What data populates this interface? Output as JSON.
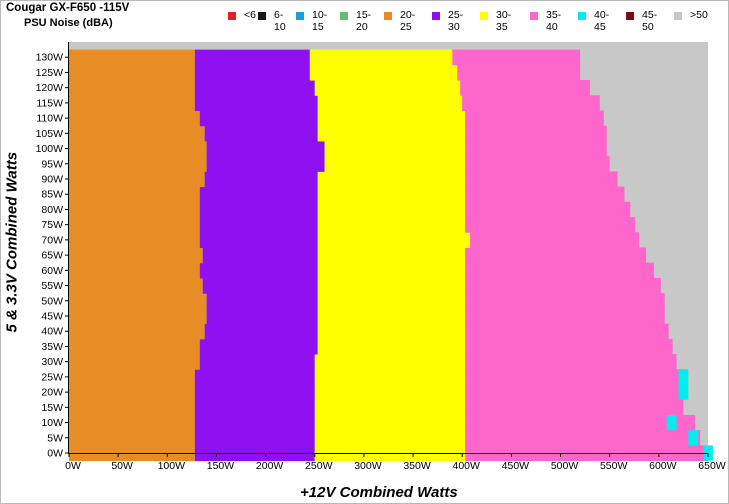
{
  "title": "Cougar GX-F650 -115V",
  "subtitle": "PSU Noise (dBA)",
  "chart_data": {
    "type": "heatmap",
    "xlabel": "+12V Combined Watts",
    "ylabel": "5 & 3.3V Combined Watts",
    "xlim": [
      0,
      650
    ],
    "ylim": [
      0,
      130
    ],
    "x_ticks": [
      "0W",
      "50W",
      "100W",
      "150W",
      "200W",
      "250W",
      "300W",
      "350W",
      "400W",
      "450W",
      "500W",
      "550W",
      "600W",
      "650W"
    ],
    "y_ticks": [
      "0W",
      "5W",
      "10W",
      "15W",
      "20W",
      "25W",
      "30W",
      "35W",
      "40W",
      "45W",
      "50W",
      "55W",
      "60W",
      "65W",
      "70W",
      "75W",
      "80W",
      "85W",
      "90W",
      "95W",
      "100W",
      "105W",
      "110W",
      "115W",
      "120W",
      "125W",
      "130W"
    ],
    "legend": [
      {
        "label": "<6",
        "color": "#e02020"
      },
      {
        "label": "6-10",
        "color": "#1a1a1a"
      },
      {
        "label": "10-15",
        "color": "#1aa0d8"
      },
      {
        "label": "15-20",
        "color": "#66bb6a"
      },
      {
        "label": "20-25",
        "color": "#e88c25"
      },
      {
        "label": "25-30",
        "color": "#8f10f0"
      },
      {
        "label": "30-35",
        "color": "#ffff00"
      },
      {
        "label": "35-40",
        "color": "#ff66cc"
      },
      {
        "label": "40-45",
        "color": "#00eeee"
      },
      {
        "label": "45-50",
        "color": "#7a0e0e"
      },
      {
        "label": ">50",
        "color": "#c8c8c8"
      }
    ],
    "zone_boundaries_watts": [
      {
        "y": 0,
        "b20": 128,
        "b25": 250,
        "b30": 403,
        "b35": 652
      },
      {
        "y": 5,
        "b20": 128,
        "b25": 250,
        "b30": 403,
        "b35": 642
      },
      {
        "y": 10,
        "b20": 128,
        "b25": 250,
        "b30": 403,
        "b35": 637
      },
      {
        "y": 15,
        "b20": 128,
        "b25": 250,
        "b30": 403,
        "b35": 625
      },
      {
        "y": 20,
        "b20": 128,
        "b25": 250,
        "b30": 403,
        "b35": 625
      },
      {
        "y": 25,
        "b20": 128,
        "b25": 250,
        "b30": 403,
        "b35": 625
      },
      {
        "y": 30,
        "b20": 133,
        "b25": 250,
        "b30": 403,
        "b35": 618
      },
      {
        "y": 35,
        "b20": 133,
        "b25": 253,
        "b30": 403,
        "b35": 614
      },
      {
        "y": 40,
        "b20": 138,
        "b25": 253,
        "b30": 403,
        "b35": 610
      },
      {
        "y": 45,
        "b20": 140,
        "b25": 253,
        "b30": 403,
        "b35": 606
      },
      {
        "y": 50,
        "b20": 140,
        "b25": 253,
        "b30": 403,
        "b35": 606
      },
      {
        "y": 55,
        "b20": 136,
        "b25": 253,
        "b30": 403,
        "b35": 602
      },
      {
        "y": 60,
        "b20": 133,
        "b25": 253,
        "b30": 403,
        "b35": 595
      },
      {
        "y": 65,
        "b20": 136,
        "b25": 253,
        "b30": 403,
        "b35": 587
      },
      {
        "y": 70,
        "b20": 133,
        "b25": 253,
        "b30": 408,
        "b35": 580
      },
      {
        "y": 75,
        "b20": 133,
        "b25": 253,
        "b30": 403,
        "b35": 576
      },
      {
        "y": 80,
        "b20": 133,
        "b25": 253,
        "b30": 403,
        "b35": 571
      },
      {
        "y": 85,
        "b20": 133,
        "b25": 253,
        "b30": 403,
        "b35": 565
      },
      {
        "y": 90,
        "b20": 138,
        "b25": 253,
        "b30": 403,
        "b35": 558
      },
      {
        "y": 95,
        "b20": 140,
        "b25": 260,
        "b30": 403,
        "b35": 550
      },
      {
        "y": 100,
        "b20": 140,
        "b25": 260,
        "b30": 403,
        "b35": 547
      },
      {
        "y": 105,
        "b20": 138,
        "b25": 253,
        "b30": 403,
        "b35": 547
      },
      {
        "y": 110,
        "b20": 133,
        "b25": 253,
        "b30": 403,
        "b35": 544
      },
      {
        "y": 115,
        "b20": 128,
        "b25": 253,
        "b30": 400,
        "b35": 540
      },
      {
        "y": 120,
        "b20": 128,
        "b25": 250,
        "b30": 398,
        "b35": 530
      },
      {
        "y": 125,
        "b20": 128,
        "b25": 245,
        "b30": 395,
        "b35": 520
      },
      {
        "y": 130,
        "b20": 128,
        "b25": 245,
        "b30": 390,
        "b35": 520
      }
    ],
    "cells_40_45": [
      {
        "x": 620,
        "y": 20
      },
      {
        "x": 620,
        "y": 25
      },
      {
        "x": 608,
        "y": 10
      },
      {
        "x": 630,
        "y": 5
      },
      {
        "x": 645,
        "y": 0
      }
    ]
  }
}
